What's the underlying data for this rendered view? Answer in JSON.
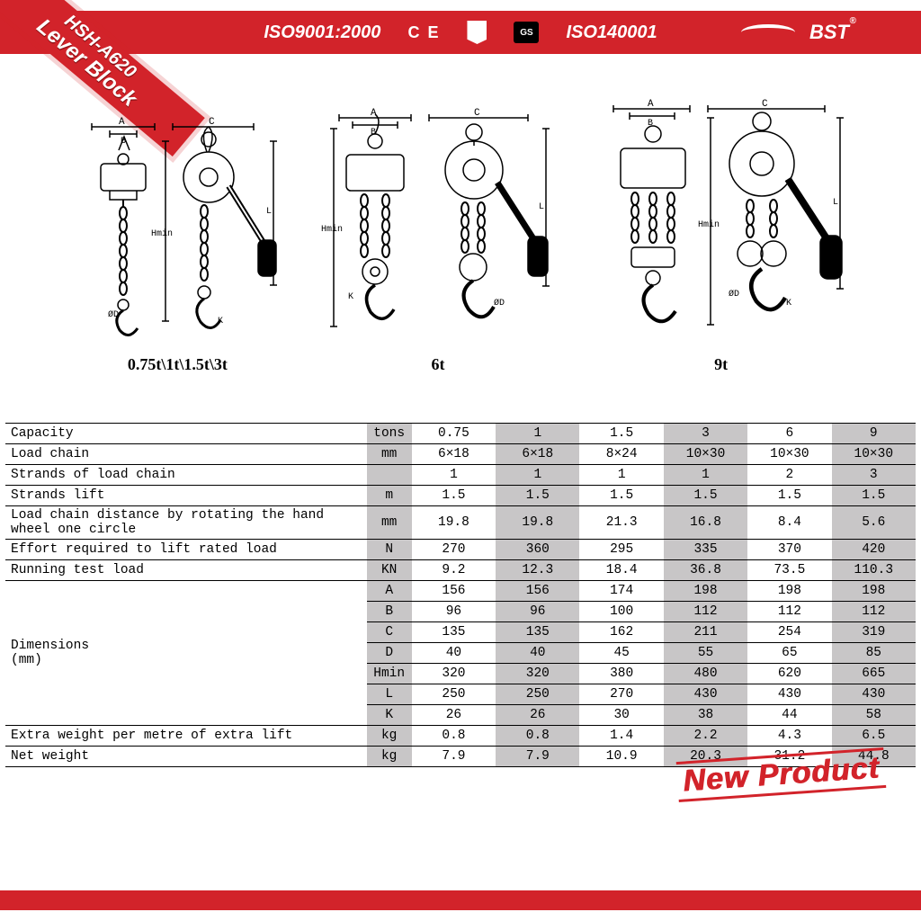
{
  "header": {
    "iso1": "ISO9001:2000",
    "ce": "C E",
    "gs": "GS",
    "iso2": "ISO140001",
    "brand": "BST",
    "reg": "®"
  },
  "ribbon": {
    "line1": "HSH-A620",
    "line2": "Lever Block"
  },
  "diagrams": {
    "labels": [
      "0.75t\\1t\\1.5t\\3t",
      "6t",
      "9t"
    ],
    "dimletters": [
      "A",
      "B",
      "C",
      "Hmin",
      "L",
      "ØD",
      "K"
    ]
  },
  "stamp": "New Product",
  "table": {
    "unit_bg": "#c8c6c7",
    "columns_shaded": [
      false,
      true,
      false,
      true,
      false,
      true
    ],
    "rows": [
      {
        "label": "Capacity",
        "unit": "tons",
        "vals": [
          "0.75",
          "1",
          "1.5",
          "3",
          "6",
          "9"
        ]
      },
      {
        "label": "Load chain",
        "unit": "mm",
        "vals": [
          "6×18",
          "6×18",
          "8×24",
          "10×30",
          "10×30",
          "10×30"
        ]
      },
      {
        "label": "Strands of load chain",
        "unit": "",
        "vals": [
          "1",
          "1",
          "1",
          "1",
          "2",
          "3"
        ]
      },
      {
        "label": "Strands lift",
        "unit": "m",
        "vals": [
          "1.5",
          "1.5",
          "1.5",
          "1.5",
          "1.5",
          "1.5"
        ]
      },
      {
        "label": "Load chain distance by rotating the hand wheel one circle",
        "unit": "mm",
        "vals": [
          "19.8",
          "19.8",
          "21.3",
          "16.8",
          "8.4",
          "5.6"
        ]
      },
      {
        "label": "Effort required to lift rated load",
        "unit": "N",
        "vals": [
          "270",
          "360",
          "295",
          "335",
          "370",
          "420"
        ]
      },
      {
        "label": "Running test load",
        "unit": "KN",
        "vals": [
          "9.2",
          "12.3",
          "18.4",
          "36.8",
          "73.5",
          "110.3"
        ]
      }
    ],
    "dim_block": {
      "label": "Dimensions",
      "label2": "(mm)",
      "rows": [
        {
          "unit": "A",
          "vals": [
            "156",
            "156",
            "174",
            "198",
            "198",
            "198"
          ]
        },
        {
          "unit": "B",
          "vals": [
            "96",
            "96",
            "100",
            "112",
            "112",
            "112"
          ]
        },
        {
          "unit": "C",
          "vals": [
            "135",
            "135",
            "162",
            "211",
            "254",
            "319"
          ]
        },
        {
          "unit": "D",
          "vals": [
            "40",
            "40",
            "45",
            "55",
            "65",
            "85"
          ]
        },
        {
          "unit": "Hmin",
          "vals": [
            "320",
            "320",
            "380",
            "480",
            "620",
            "665"
          ]
        },
        {
          "unit": "L",
          "vals": [
            "250",
            "250",
            "270",
            "430",
            "430",
            "430"
          ]
        },
        {
          "unit": "K",
          "vals": [
            "26",
            "26",
            "30",
            "38",
            "44",
            "58"
          ]
        }
      ]
    },
    "tail_rows": [
      {
        "label": "Extra weight per metre of extra lift",
        "unit": "kg",
        "vals": [
          "0.8",
          "0.8",
          "1.4",
          "2.2",
          "4.3",
          "6.5"
        ]
      },
      {
        "label": "Net weight",
        "unit": "kg",
        "vals": [
          "7.9",
          "7.9",
          "10.9",
          "20.3",
          "31.2",
          "44.8"
        ]
      }
    ]
  }
}
